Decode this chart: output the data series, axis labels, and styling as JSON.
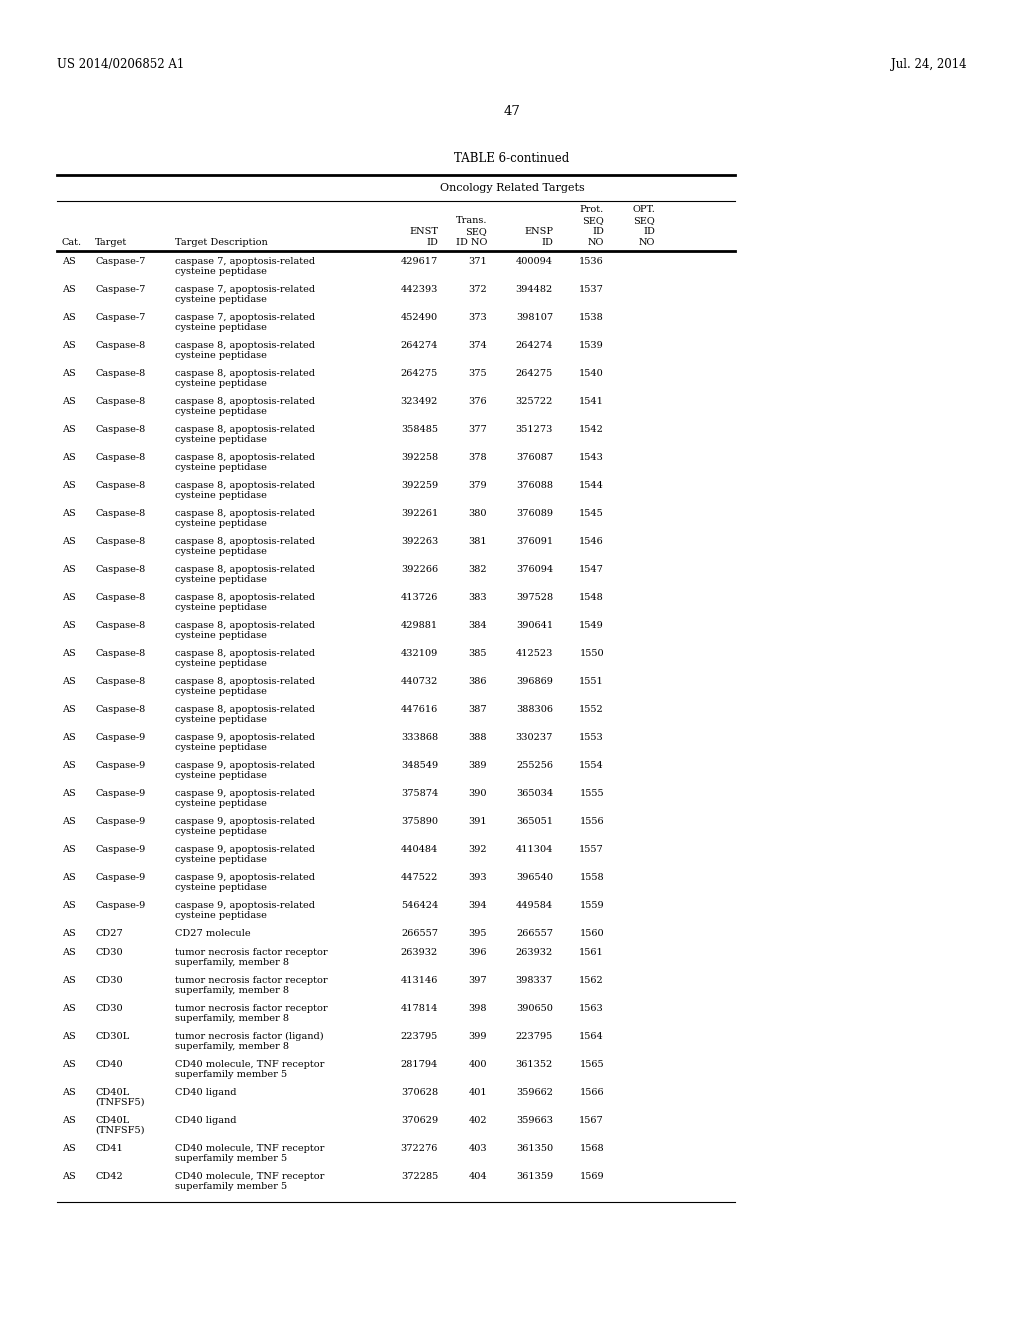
{
  "page_header_left": "US 2014/0206852 A1",
  "page_header_right": "Jul. 24, 2014",
  "page_number": "47",
  "table_title": "TABLE 6-continued",
  "table_subtitle": "Oncology Related Targets",
  "rows": [
    [
      "AS",
      "Caspase-7",
      "caspase 7, apoptosis-related\ncysteine peptidase",
      "429617",
      "371",
      "400094",
      "1536",
      ""
    ],
    [
      "AS",
      "Caspase-7",
      "caspase 7, apoptosis-related\ncysteine peptidase",
      "442393",
      "372",
      "394482",
      "1537",
      ""
    ],
    [
      "AS",
      "Caspase-7",
      "caspase 7, apoptosis-related\ncysteine peptidase",
      "452490",
      "373",
      "398107",
      "1538",
      ""
    ],
    [
      "AS",
      "Caspase-8",
      "caspase 8, apoptosis-related\ncysteine peptidase",
      "264274",
      "374",
      "264274",
      "1539",
      ""
    ],
    [
      "AS",
      "Caspase-8",
      "caspase 8, apoptosis-related\ncysteine peptidase",
      "264275",
      "375",
      "264275",
      "1540",
      ""
    ],
    [
      "AS",
      "Caspase-8",
      "caspase 8, apoptosis-related\ncysteine peptidase",
      "323492",
      "376",
      "325722",
      "1541",
      ""
    ],
    [
      "AS",
      "Caspase-8",
      "caspase 8, apoptosis-related\ncysteine peptidase",
      "358485",
      "377",
      "351273",
      "1542",
      ""
    ],
    [
      "AS",
      "Caspase-8",
      "caspase 8, apoptosis-related\ncysteine peptidase",
      "392258",
      "378",
      "376087",
      "1543",
      ""
    ],
    [
      "AS",
      "Caspase-8",
      "caspase 8, apoptosis-related\ncysteine peptidase",
      "392259",
      "379",
      "376088",
      "1544",
      ""
    ],
    [
      "AS",
      "Caspase-8",
      "caspase 8, apoptosis-related\ncysteine peptidase",
      "392261",
      "380",
      "376089",
      "1545",
      ""
    ],
    [
      "AS",
      "Caspase-8",
      "caspase 8, apoptosis-related\ncysteine peptidase",
      "392263",
      "381",
      "376091",
      "1546",
      ""
    ],
    [
      "AS",
      "Caspase-8",
      "caspase 8, apoptosis-related\ncysteine peptidase",
      "392266",
      "382",
      "376094",
      "1547",
      ""
    ],
    [
      "AS",
      "Caspase-8",
      "caspase 8, apoptosis-related\ncysteine peptidase",
      "413726",
      "383",
      "397528",
      "1548",
      ""
    ],
    [
      "AS",
      "Caspase-8",
      "caspase 8, apoptosis-related\ncysteine peptidase",
      "429881",
      "384",
      "390641",
      "1549",
      ""
    ],
    [
      "AS",
      "Caspase-8",
      "caspase 8, apoptosis-related\ncysteine peptidase",
      "432109",
      "385",
      "412523",
      "1550",
      ""
    ],
    [
      "AS",
      "Caspase-8",
      "caspase 8, apoptosis-related\ncysteine peptidase",
      "440732",
      "386",
      "396869",
      "1551",
      ""
    ],
    [
      "AS",
      "Caspase-8",
      "caspase 8, apoptosis-related\ncysteine peptidase",
      "447616",
      "387",
      "388306",
      "1552",
      ""
    ],
    [
      "AS",
      "Caspase-9",
      "caspase 9, apoptosis-related\ncysteine peptidase",
      "333868",
      "388",
      "330237",
      "1553",
      ""
    ],
    [
      "AS",
      "Caspase-9",
      "caspase 9, apoptosis-related\ncysteine peptidase",
      "348549",
      "389",
      "255256",
      "1554",
      ""
    ],
    [
      "AS",
      "Caspase-9",
      "caspase 9, apoptosis-related\ncysteine peptidase",
      "375874",
      "390",
      "365034",
      "1555",
      ""
    ],
    [
      "AS",
      "Caspase-9",
      "caspase 9, apoptosis-related\ncysteine peptidase",
      "375890",
      "391",
      "365051",
      "1556",
      ""
    ],
    [
      "AS",
      "Caspase-9",
      "caspase 9, apoptosis-related\ncysteine peptidase",
      "440484",
      "392",
      "411304",
      "1557",
      ""
    ],
    [
      "AS",
      "Caspase-9",
      "caspase 9, apoptosis-related\ncysteine peptidase",
      "447522",
      "393",
      "396540",
      "1558",
      ""
    ],
    [
      "AS",
      "Caspase-9",
      "caspase 9, apoptosis-related\ncysteine peptidase",
      "546424",
      "394",
      "449584",
      "1559",
      ""
    ],
    [
      "AS",
      "CD27",
      "CD27 molecule",
      "266557",
      "395",
      "266557",
      "1560",
      ""
    ],
    [
      "AS",
      "CD30",
      "tumor necrosis factor receptor\nsuperfamily, member 8",
      "263932",
      "396",
      "263932",
      "1561",
      ""
    ],
    [
      "AS",
      "CD30",
      "tumor necrosis factor receptor\nsuperfamily, member 8",
      "413146",
      "397",
      "398337",
      "1562",
      ""
    ],
    [
      "AS",
      "CD30",
      "tumor necrosis factor receptor\nsuperfamily, member 8",
      "417814",
      "398",
      "390650",
      "1563",
      ""
    ],
    [
      "AS",
      "CD30L",
      "tumor necrosis factor (ligand)\nsuperfamily, member 8",
      "223795",
      "399",
      "223795",
      "1564",
      ""
    ],
    [
      "AS",
      "CD40",
      "CD40 molecule, TNF receptor\nsuperfamily member 5",
      "281794",
      "400",
      "361352",
      "1565",
      ""
    ],
    [
      "AS",
      "CD40L\n(TNFSF5)",
      "CD40 ligand",
      "370628",
      "401",
      "359662",
      "1566",
      ""
    ],
    [
      "AS",
      "CD40L\n(TNFSF5)",
      "CD40 ligand",
      "370629",
      "402",
      "359663",
      "1567",
      ""
    ],
    [
      "AS",
      "CD41",
      "CD40 molecule, TNF receptor\nsuperfamily member 5",
      "372276",
      "403",
      "361350",
      "1568",
      ""
    ],
    [
      "AS",
      "CD42",
      "CD40 molecule, TNF receptor\nsuperfamily member 5",
      "372285",
      "404",
      "361359",
      "1569",
      ""
    ]
  ],
  "background_color": "#ffffff",
  "text_color": "#000000",
  "font_size": 7.0,
  "header_font_size": 7.0
}
